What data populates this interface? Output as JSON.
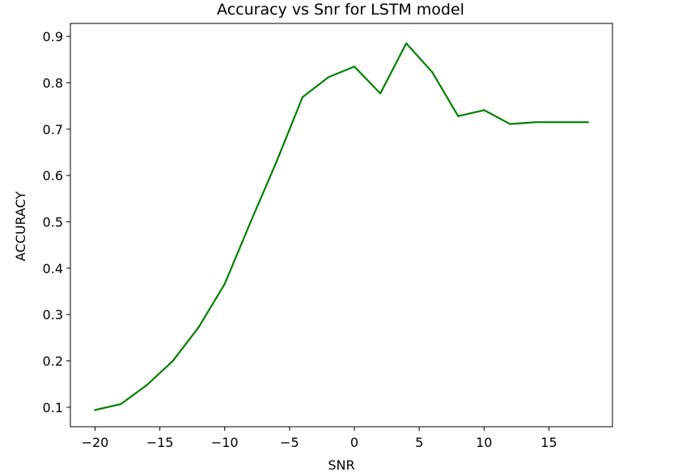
{
  "chart_data": {
    "type": "line",
    "title": "Accuracy vs Snr for LSTM model",
    "xlabel": "SNR",
    "ylabel": "ACCURACY",
    "xlim": [
      -21.9,
      19.9
    ],
    "ylim": [
      0.058,
      0.928
    ],
    "x_ticks": [
      -20,
      -15,
      -10,
      -5,
      0,
      5,
      10,
      15
    ],
    "x_tick_labels": [
      "−20",
      "−15",
      "−10",
      "−5",
      "0",
      "5",
      "10",
      "15"
    ],
    "y_ticks": [
      0.1,
      0.2,
      0.3,
      0.4,
      0.5,
      0.6,
      0.7,
      0.8,
      0.9
    ],
    "y_tick_labels": [
      "0.1",
      "0.2",
      "0.3",
      "0.4",
      "0.5",
      "0.6",
      "0.7",
      "0.8",
      "0.9"
    ],
    "grid": false,
    "series": [
      {
        "name": "LSTM",
        "color": "#008000",
        "x": [
          -20,
          -18,
          -16,
          -14,
          -12,
          -10,
          -8,
          -6,
          -4,
          -2,
          0,
          2,
          4,
          6,
          8,
          10,
          12,
          14,
          16,
          18
        ],
        "values": [
          0.094,
          0.107,
          0.148,
          0.2,
          0.273,
          0.366,
          0.5,
          0.63,
          0.769,
          0.812,
          0.835,
          0.777,
          0.885,
          0.823,
          0.728,
          0.741,
          0.711,
          0.715,
          0.715,
          0.715
        ]
      }
    ]
  }
}
